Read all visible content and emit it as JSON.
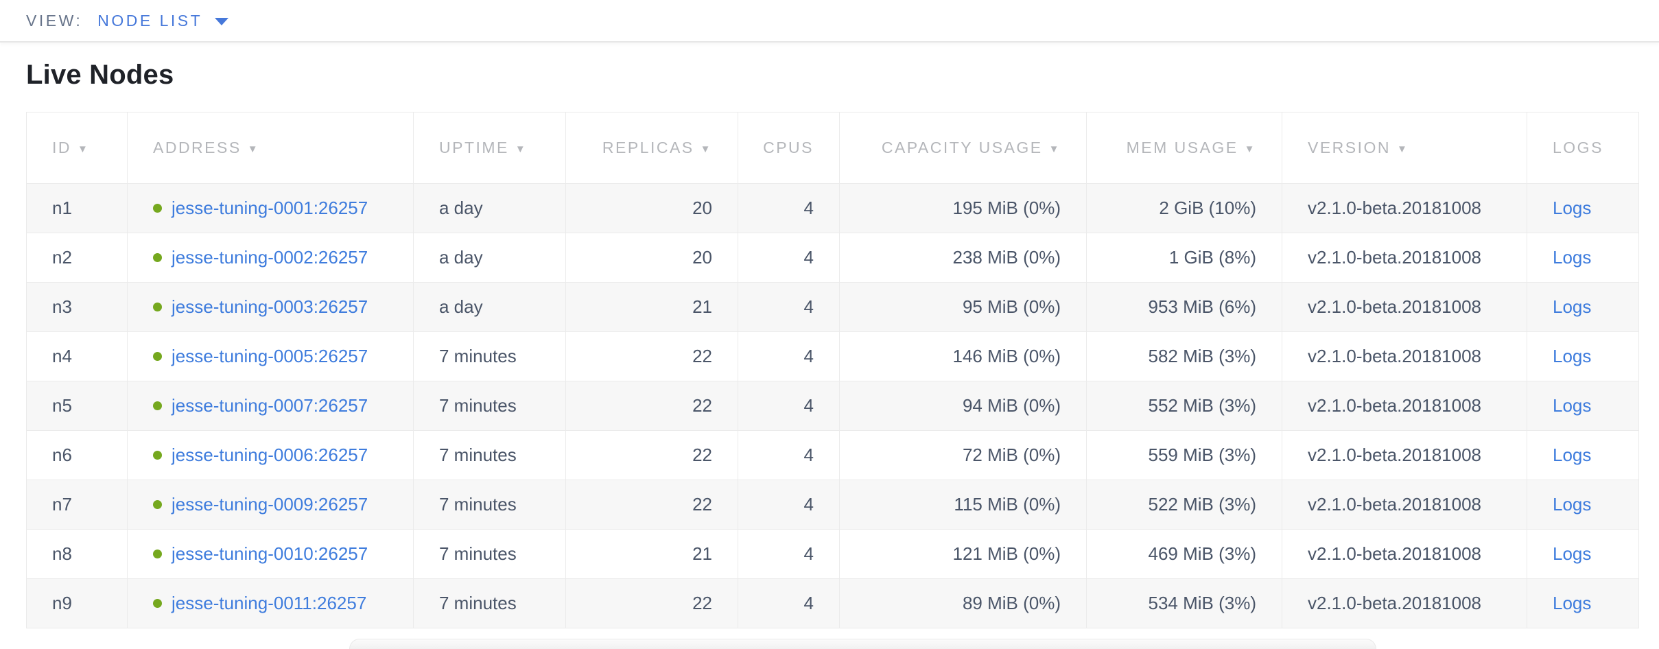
{
  "view_bar": {
    "label": "VIEW:",
    "selected": "NODE LIST"
  },
  "page": {
    "title": "Live Nodes"
  },
  "icons": {
    "sort_desc": "▼",
    "chevron_down": "▼",
    "healthy_dot": "●"
  },
  "colors": {
    "link_blue": "#3e7cdd",
    "accent_blue": "#4678da",
    "healthy_green": "#75a81e",
    "header_gray": "#b4b6ba",
    "text_slate": "#4a5568"
  },
  "table": {
    "columns": [
      {
        "key": "id",
        "label": "ID",
        "sortable": true
      },
      {
        "key": "address",
        "label": "ADDRESS",
        "sortable": true
      },
      {
        "key": "uptime",
        "label": "UPTIME",
        "sortable": true
      },
      {
        "key": "replicas",
        "label": "REPLICAS",
        "sortable": true
      },
      {
        "key": "cpus",
        "label": "CPUS",
        "sortable": false
      },
      {
        "key": "capacity-usage",
        "label": "CAPACITY USAGE",
        "sortable": true
      },
      {
        "key": "mem-usage",
        "label": "MEM USAGE",
        "sortable": true
      },
      {
        "key": "version",
        "label": "VERSION",
        "sortable": true
      },
      {
        "key": "logs",
        "label": "LOGS",
        "sortable": false
      }
    ],
    "rows": [
      {
        "id": "n1",
        "address": "jesse-tuning-0001:26257",
        "uptime": "a day",
        "replicas": "20",
        "cpus": "4",
        "capacity": "195 MiB (0%)",
        "mem_usage": "2 GiB (10%)",
        "version": "v2.1.0-beta.20181008",
        "logs": "Logs"
      },
      {
        "id": "n2",
        "address": "jesse-tuning-0002:26257",
        "uptime": "a day",
        "replicas": "20",
        "cpus": "4",
        "capacity": "238 MiB (0%)",
        "mem_usage": "1 GiB (8%)",
        "version": "v2.1.0-beta.20181008",
        "logs": "Logs"
      },
      {
        "id": "n3",
        "address": "jesse-tuning-0003:26257",
        "uptime": "a day",
        "replicas": "21",
        "cpus": "4",
        "capacity": "95 MiB (0%)",
        "mem_usage": "953 MiB (6%)",
        "version": "v2.1.0-beta.20181008",
        "logs": "Logs"
      },
      {
        "id": "n4",
        "address": "jesse-tuning-0005:26257",
        "uptime": "7 minutes",
        "replicas": "22",
        "cpus": "4",
        "capacity": "146 MiB (0%)",
        "mem_usage": "582 MiB (3%)",
        "version": "v2.1.0-beta.20181008",
        "logs": "Logs"
      },
      {
        "id": "n5",
        "address": "jesse-tuning-0007:26257",
        "uptime": "7 minutes",
        "replicas": "22",
        "cpus": "4",
        "capacity": "94 MiB (0%)",
        "mem_usage": "552 MiB (3%)",
        "version": "v2.1.0-beta.20181008",
        "logs": "Logs"
      },
      {
        "id": "n6",
        "address": "jesse-tuning-0006:26257",
        "uptime": "7 minutes",
        "replicas": "22",
        "cpus": "4",
        "capacity": "72 MiB (0%)",
        "mem_usage": "559 MiB (3%)",
        "version": "v2.1.0-beta.20181008",
        "logs": "Logs"
      },
      {
        "id": "n7",
        "address": "jesse-tuning-0009:26257",
        "uptime": "7 minutes",
        "replicas": "22",
        "cpus": "4",
        "capacity": "115 MiB (0%)",
        "mem_usage": "522 MiB (3%)",
        "version": "v2.1.0-beta.20181008",
        "logs": "Logs"
      },
      {
        "id": "n8",
        "address": "jesse-tuning-0010:26257",
        "uptime": "7 minutes",
        "replicas": "21",
        "cpus": "4",
        "capacity": "121 MiB (0%)",
        "mem_usage": "469 MiB (3%)",
        "version": "v2.1.0-beta.20181008",
        "logs": "Logs"
      },
      {
        "id": "n9",
        "address": "jesse-tuning-0011:26257",
        "uptime": "7 minutes",
        "replicas": "22",
        "cpus": "4",
        "capacity": "89 MiB (0%)",
        "mem_usage": "534 MiB (3%)",
        "version": "v2.1.0-beta.20181008",
        "logs": "Logs"
      }
    ]
  }
}
